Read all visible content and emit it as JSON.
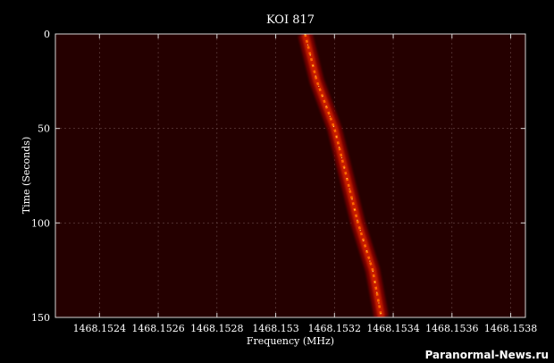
{
  "chart_data": {
    "type": "heatmap",
    "title": "KOI 817",
    "xlabel": "Frequency (MHz)",
    "ylabel": "Time (Seconds)",
    "xlim": [
      1468.15225,
      1468.15385
    ],
    "ylim": [
      0,
      150
    ],
    "y_inverted": true,
    "grid": true,
    "x_ticks": [
      1468.1524,
      1468.1526,
      1468.1528,
      1468.153,
      1468.1532,
      1468.1534,
      1468.1536,
      1468.1538
    ],
    "x_tick_labels": [
      "1468.1524",
      "1468.1526",
      "1468.1528",
      "1468.153",
      "1468.1532",
      "1468.1534",
      "1468.1536",
      "1468.1538"
    ],
    "y_ticks": [
      0,
      50,
      100,
      150
    ],
    "y_tick_labels": [
      "0",
      "50",
      "100",
      "150"
    ],
    "background_color": "#250000",
    "signal": {
      "description": "narrowband drifting signal",
      "points": [
        {
          "time": 0,
          "frequency": 1468.1531
        },
        {
          "time": 25,
          "frequency": 1468.15314
        },
        {
          "time": 50,
          "frequency": 1468.1532
        },
        {
          "time": 75,
          "frequency": 1468.15324
        },
        {
          "time": 100,
          "frequency": 1468.15328
        },
        {
          "time": 125,
          "frequency": 1468.15333
        },
        {
          "time": 150,
          "frequency": 1468.15336
        }
      ],
      "colors": [
        "#7a0000",
        "#c81e00",
        "#ff6a00",
        "#ffe060"
      ]
    }
  },
  "watermark": "Paranormal-News.ru"
}
